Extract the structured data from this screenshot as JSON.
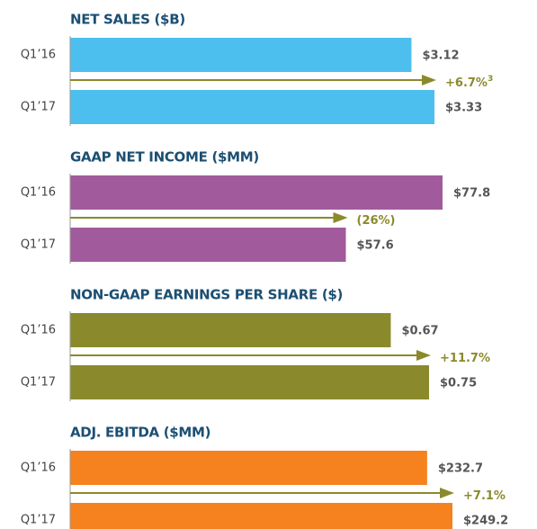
{
  "chart_data": [
    {
      "type": "bar",
      "orientation": "horizontal",
      "title": "NET SALES ($B)",
      "categories": [
        "Q1’16",
        "Q1’17"
      ],
      "values": [
        3.12,
        3.33
      ],
      "value_labels": [
        "$3.12",
        "$3.33"
      ],
      "color": "#4dbfee",
      "change": "+6.7%",
      "change_footnote": "3",
      "change_color": "#8a8a2c"
    },
    {
      "type": "bar",
      "orientation": "horizontal",
      "title": "GAAP NET INCOME ($MM)",
      "categories": [
        "Q1’16",
        "Q1’17"
      ],
      "values": [
        77.8,
        57.6
      ],
      "value_labels": [
        "$77.8",
        "$57.6"
      ],
      "color": "#a15b9c",
      "change": "(26%)",
      "change_color": "#8a8a2c"
    },
    {
      "type": "bar",
      "orientation": "horizontal",
      "title": "NON-GAAP EARNINGS PER SHARE ($)",
      "categories": [
        "Q1’16",
        "Q1’17"
      ],
      "values": [
        0.67,
        0.75
      ],
      "value_labels": [
        "$0.67",
        "$0.75"
      ],
      "color": "#8a8a2c",
      "change": "+11.7%",
      "change_color": "#8a8a2c"
    },
    {
      "type": "bar",
      "orientation": "horizontal",
      "title": "ADJ. EBITDA ($MM)",
      "categories": [
        "Q1’16",
        "Q1’17"
      ],
      "values": [
        232.7,
        249.2
      ],
      "value_labels": [
        "$232.7",
        "$249.2"
      ],
      "color": "#f5821f",
      "change": "+7.1%",
      "change_color": "#8a8a2c"
    }
  ]
}
